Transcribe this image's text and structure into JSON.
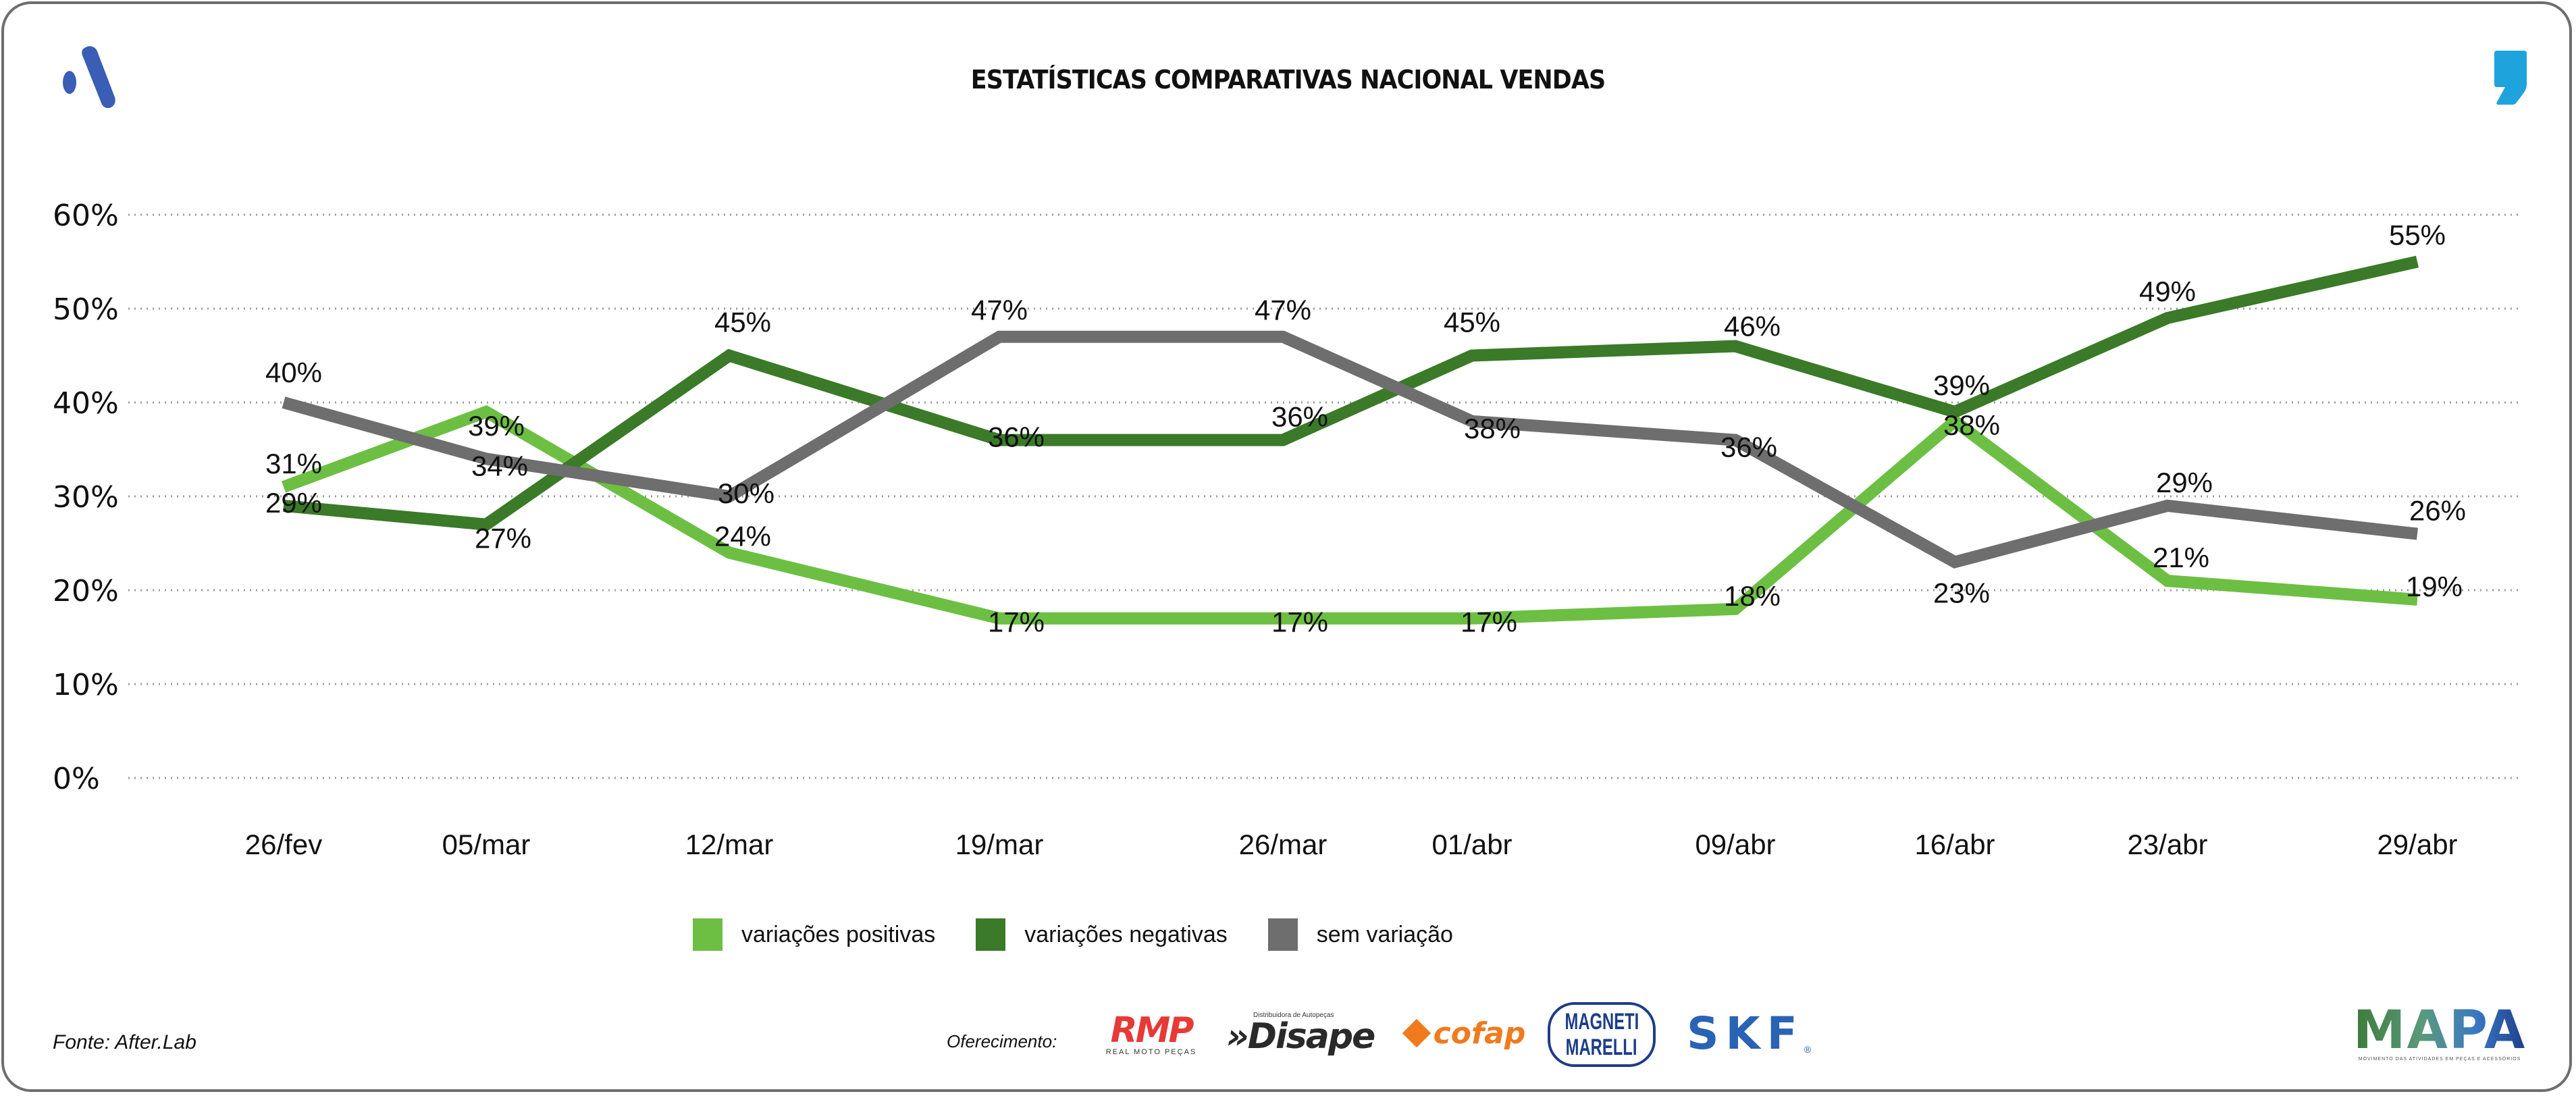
{
  "header": {
    "title": "ESTATÍSTICAS COMPARATIVAS NACIONAL VENDAS",
    "left_logo_icon": "brand-a-logo-icon",
    "right_logo_icon": "comma-logo-icon"
  },
  "colors": {
    "positivas": "#6cbf43",
    "negativas": "#3a7a28",
    "sem_variacao": "#6e6e6e",
    "grid": "#9a9a9a",
    "brand_blue": "#3a5db5",
    "comma_blue": "#1fa3dc"
  },
  "chart_data": {
    "type": "line",
    "title": "ESTATÍSTICAS COMPARATIVAS NACIONAL VENDAS",
    "xlabel": "",
    "ylabel": "",
    "ylim": [
      0,
      60
    ],
    "yticks": [
      0,
      10,
      20,
      30,
      40,
      50,
      60
    ],
    "ytick_labels": [
      "0%",
      "10%",
      "20%",
      "30%",
      "40%",
      "50%",
      "60%"
    ],
    "grid": true,
    "legend_position": "bottom",
    "categories": [
      "26/fev",
      "05/mar",
      "12/mar",
      "19/mar",
      "26/mar",
      "01/abr",
      "09/abr",
      "16/abr",
      "23/abr",
      "29/abr"
    ],
    "series": [
      {
        "name": "variações positivas",
        "color": "#6cbf43",
        "values": [
          31,
          39,
          24,
          17,
          17,
          17,
          18,
          38,
          21,
          19
        ],
        "labels": [
          "31%",
          "39%",
          "24%",
          "17%",
          "17%",
          "17%",
          "18%",
          "38%",
          "21%",
          "19%"
        ]
      },
      {
        "name": "variações negativas",
        "color": "#3a7a28",
        "values": [
          29,
          27,
          45,
          36,
          36,
          45,
          46,
          39,
          49,
          55
        ],
        "labels": [
          "29%",
          "27%",
          "45%",
          "36%",
          "36%",
          "45%",
          "46%",
          "39%",
          "49%",
          "55%"
        ]
      },
      {
        "name": "sem variação",
        "color": "#6e6e6e",
        "values": [
          40,
          34,
          30,
          47,
          47,
          38,
          36,
          23,
          29,
          26
        ],
        "labels": [
          "40%",
          "34%",
          "30%",
          "47%",
          "47%",
          "38%",
          "36%",
          "23%",
          "29%",
          "26%"
        ]
      }
    ]
  },
  "legend": {
    "items": [
      {
        "label": "variações positivas",
        "color": "#6cbf43"
      },
      {
        "label": "variações negativas",
        "color": "#3a7a28"
      },
      {
        "label": "sem variação",
        "color": "#6e6e6e"
      }
    ]
  },
  "footer": {
    "source": "Fonte: After.Lab",
    "offer_label": "Oferecimento:",
    "sponsors": {
      "rmp": {
        "name": "RMP",
        "tagline": "REAL MOTO PEÇAS"
      },
      "disape": {
        "name": "Disape",
        "tagline": "Distribuidora de Autopeças",
        "prefix": "»"
      },
      "cofap": {
        "name": "cofap"
      },
      "magneti_marelli": {
        "line1": "MAGNETI",
        "line2": "MARELLI"
      },
      "skf": {
        "name": "SKF",
        "reg": "®"
      }
    },
    "mapa": {
      "name": "MAPA",
      "tagline": "MOVIMENTO DAS ATIVIDADES EM PEÇAS E ACESSÓRIOS"
    }
  }
}
